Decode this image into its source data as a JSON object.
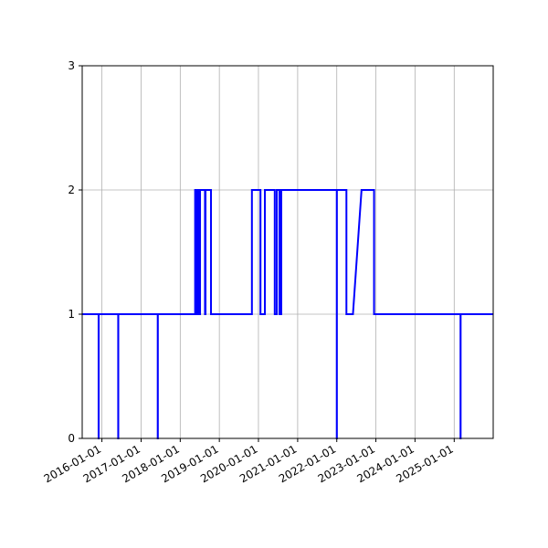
{
  "chart_data": {
    "type": "line",
    "title": "",
    "xlabel": "",
    "ylabel": "",
    "grid": true,
    "x_range": [
      "2015-07-01",
      "2025-12-31"
    ],
    "ylim": [
      0,
      3
    ],
    "yticks": [
      0,
      1,
      2,
      3
    ],
    "xticks": [
      "2016-01-01",
      "2017-01-01",
      "2018-01-01",
      "2019-01-01",
      "2020-01-01",
      "2021-01-01",
      "2022-01-01",
      "2023-01-01",
      "2024-01-01",
      "2025-01-01"
    ],
    "colors": {
      "series": "#0000ff"
    },
    "series": [
      {
        "x": [
          "2015-07-01",
          "2015-12-01",
          "2015-12-01",
          "2015-12-02",
          "2015-12-02",
          "2016-06-01",
          "2016-06-01",
          "2016-06-02",
          "2016-06-02",
          "2017-06-05",
          "2017-06-05",
          "2017-06-06",
          "2017-06-06",
          "2018-05-20",
          "2018-05-20",
          "2018-06-05",
          "2018-06-05",
          "2018-06-15",
          "2018-06-15",
          "2018-06-25",
          "2018-06-25",
          "2018-07-05",
          "2018-07-05",
          "2018-08-20",
          "2018-08-20",
          "2018-08-25",
          "2018-08-25",
          "2018-10-15",
          "2018-10-15",
          "2019-11-01",
          "2019-11-01",
          "2020-01-20",
          "2020-01-20",
          "2020-01-21",
          "2020-01-21",
          "2020-03-01",
          "2020-03-01",
          "2020-06-01",
          "2020-06-01",
          "2020-06-20",
          "2020-06-20",
          "2020-07-15",
          "2020-07-15",
          "2020-08-01",
          "2020-08-01",
          "2022-01-01",
          "2022-01-01",
          "2022-01-02",
          "2022-01-02",
          "2022-04-01",
          "2022-04-01",
          "2022-06-01",
          "2022-08-20",
          "2022-12-15",
          "2022-12-15",
          "2025-03-01",
          "2025-03-01",
          "2025-03-02",
          "2025-03-02",
          "2025-12-31"
        ],
        "y": [
          1,
          1,
          0,
          0,
          1,
          1,
          0,
          0,
          1,
          1,
          0,
          0,
          1,
          1,
          2,
          2,
          1,
          1,
          2,
          2,
          1,
          1,
          2,
          2,
          1,
          1,
          2,
          2,
          1,
          1,
          2,
          2,
          1,
          1,
          1,
          1,
          2,
          2,
          1,
          1,
          2,
          2,
          1,
          1,
          2,
          2,
          0,
          0,
          2,
          2,
          1,
          1,
          2,
          2,
          1,
          1,
          0,
          0,
          1,
          1
        ]
      }
    ]
  }
}
